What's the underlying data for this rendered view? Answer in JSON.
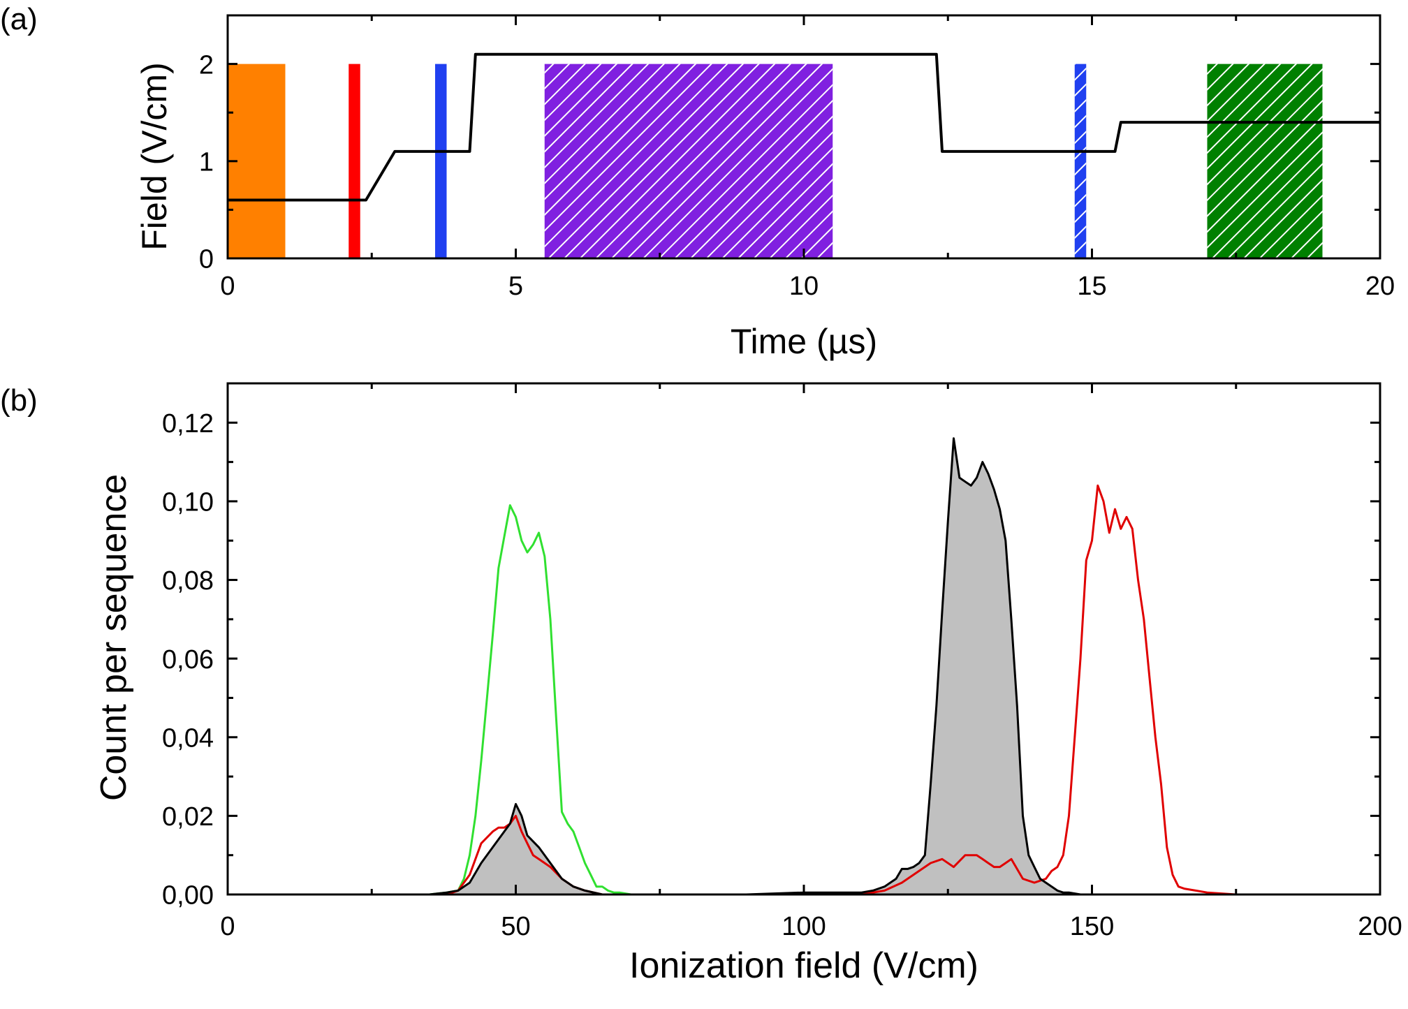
{
  "chart_data": [
    {
      "panel_label": "(a)",
      "type": "line",
      "xlabel": "Time (µs)",
      "ylabel": "Field (V/cm)",
      "xlim": [
        0,
        20
      ],
      "ylim": [
        0,
        2.5
      ],
      "xticks": [
        0,
        5,
        10,
        15,
        20
      ],
      "yticks": [
        0,
        1,
        2
      ],
      "line": {
        "color": "#000000",
        "x": [
          0,
          2.4,
          2.9,
          4.2,
          4.3,
          12.3,
          12.4,
          15.4,
          15.5,
          20
        ],
        "y": [
          0.6,
          0.6,
          1.1,
          1.1,
          2.1,
          2.1,
          1.1,
          1.1,
          1.4,
          1.4
        ]
      },
      "pulses": [
        {
          "x0": 0.0,
          "x1": 1.0,
          "height": 2.0,
          "color": "#ff8000",
          "hatched": false
        },
        {
          "x0": 2.1,
          "x1": 2.3,
          "height": 2.0,
          "color": "#ff0000",
          "hatched": false
        },
        {
          "x0": 3.6,
          "x1": 3.8,
          "height": 2.0,
          "color": "#2040f0",
          "hatched": false
        },
        {
          "x0": 5.5,
          "x1": 10.5,
          "height": 2.0,
          "color": "#8020e0",
          "hatched": true
        },
        {
          "x0": 14.7,
          "x1": 14.9,
          "height": 2.0,
          "color": "#2040f0",
          "hatched": true
        },
        {
          "x0": 17.0,
          "x1": 19.0,
          "height": 2.0,
          "color": "#008000",
          "hatched": true
        }
      ]
    },
    {
      "panel_label": "(b)",
      "type": "line",
      "xlabel": "Ionization field (V/cm)",
      "ylabel": "Count per sequence",
      "xlim": [
        0,
        200
      ],
      "ylim": [
        0,
        0.13
      ],
      "xticks": [
        0,
        50,
        100,
        150,
        200
      ],
      "xtick_labels": [
        "0",
        "50",
        "100",
        "150",
        "200"
      ],
      "yticks": [
        0,
        0.02,
        0.04,
        0.06,
        0.08,
        0.1,
        0.12
      ],
      "ytick_labels": [
        "0,00",
        "0,02",
        "0,04",
        "0,06",
        "0,08",
        "0,10",
        "0,12"
      ],
      "series": [
        {
          "color": "#000000",
          "filled": true,
          "fill_color": "#c0c0c0",
          "x": [
            30,
            35,
            38,
            40,
            42,
            44,
            46,
            48,
            49,
            50,
            51,
            52,
            54,
            56,
            58,
            60,
            62,
            65,
            70,
            80,
            90,
            100,
            110,
            112,
            114,
            116,
            117,
            118,
            119,
            120,
            121,
            122,
            123,
            124,
            125,
            126,
            127,
            128,
            129,
            130,
            131,
            132,
            133,
            134,
            135,
            136,
            137,
            138,
            139,
            140,
            141,
            142,
            143,
            144,
            145,
            146,
            148,
            150,
            160,
            170,
            180,
            185,
            187
          ],
          "y": [
            0.0,
            0.0,
            0.0005,
            0.001,
            0.003,
            0.008,
            0.012,
            0.016,
            0.018,
            0.023,
            0.02,
            0.015,
            0.012,
            0.008,
            0.004,
            0.002,
            0.001,
            0.0,
            0.0,
            0.0,
            0.0,
            0.0005,
            0.0005,
            0.001,
            0.002,
            0.004,
            0.0065,
            0.0065,
            0.007,
            0.008,
            0.01,
            0.028,
            0.048,
            0.072,
            0.095,
            0.116,
            0.106,
            0.105,
            0.104,
            0.106,
            0.11,
            0.107,
            0.103,
            0.098,
            0.09,
            0.07,
            0.048,
            0.02,
            0.01,
            0.007,
            0.004,
            0.003,
            0.002,
            0.001,
            0.0005,
            0.0005,
            0.0,
            0.0,
            0.0,
            0.0,
            0.0,
            0.0,
            0.0
          ]
        },
        {
          "color": "#e00000",
          "filled": false,
          "x": [
            30,
            35,
            38,
            40,
            42,
            44,
            46,
            47,
            48,
            49,
            50,
            51,
            52,
            53,
            54,
            56,
            58,
            60,
            62,
            65,
            70,
            80,
            90,
            100,
            110,
            114,
            117,
            120,
            122,
            124,
            126,
            128,
            130,
            131,
            132,
            133,
            134,
            135,
            136,
            138,
            140,
            142,
            143,
            144,
            145,
            146,
            147,
            148,
            149,
            150,
            151,
            152,
            153,
            154,
            155,
            156,
            157,
            158,
            159,
            160,
            161,
            162,
            163,
            164,
            165,
            166,
            168,
            170,
            175,
            180,
            185,
            187
          ],
          "y": [
            0.0,
            0.0,
            0.0,
            0.001,
            0.005,
            0.013,
            0.016,
            0.017,
            0.017,
            0.018,
            0.02,
            0.016,
            0.013,
            0.01,
            0.009,
            0.007,
            0.004,
            0.002,
            0.001,
            0.0,
            0.0,
            0.0,
            0.0,
            0.0,
            0.0,
            0.001,
            0.003,
            0.006,
            0.008,
            0.009,
            0.007,
            0.01,
            0.01,
            0.009,
            0.008,
            0.007,
            0.007,
            0.008,
            0.009,
            0.004,
            0.003,
            0.004,
            0.006,
            0.007,
            0.01,
            0.02,
            0.04,
            0.06,
            0.085,
            0.09,
            0.104,
            0.1,
            0.092,
            0.098,
            0.093,
            0.096,
            0.093,
            0.08,
            0.07,
            0.055,
            0.04,
            0.028,
            0.012,
            0.005,
            0.002,
            0.0015,
            0.001,
            0.0005,
            0.0,
            0.0,
            0.0,
            0.0
          ]
        },
        {
          "color": "#30e030",
          "filled": false,
          "x": [
            30,
            35,
            38,
            40,
            41,
            42,
            43,
            44,
            45,
            46,
            47,
            48,
            49,
            50,
            51,
            52,
            53,
            54,
            55,
            56,
            57,
            58,
            59,
            60,
            61,
            62,
            63,
            64,
            65,
            66,
            67,
            68,
            70,
            75,
            80,
            90,
            100,
            110,
            120,
            130,
            140,
            150,
            160,
            170,
            180,
            185,
            187
          ],
          "y": [
            0.0,
            0.0,
            0.0005,
            0.001,
            0.004,
            0.01,
            0.02,
            0.034,
            0.05,
            0.066,
            0.083,
            0.091,
            0.099,
            0.096,
            0.09,
            0.087,
            0.089,
            0.092,
            0.086,
            0.07,
            0.045,
            0.021,
            0.018,
            0.016,
            0.012,
            0.008,
            0.005,
            0.002,
            0.002,
            0.001,
            0.0005,
            0.0005,
            0.0,
            0.0,
            0.0,
            0.0,
            0.0,
            0.0,
            0.0,
            0.0,
            0.0,
            0.0,
            0.0,
            0.0,
            0.0,
            0.0,
            0.0
          ]
        }
      ]
    }
  ]
}
